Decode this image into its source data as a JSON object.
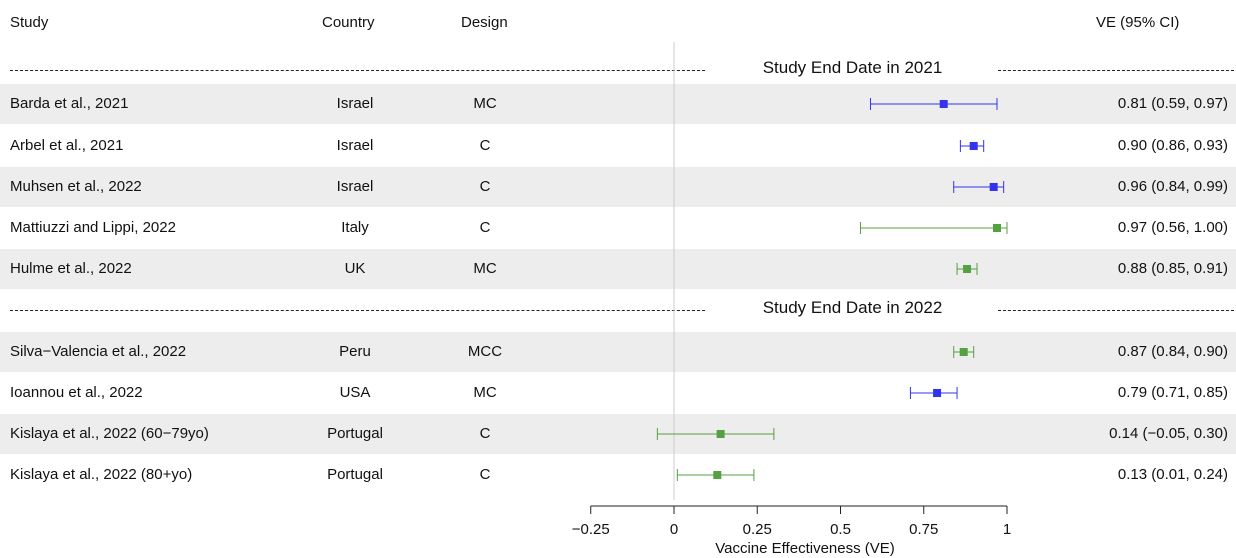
{
  "header": {
    "study": "Study",
    "country": "Country",
    "design": "Design",
    "ve": "VE (95% CI)"
  },
  "groups": [
    {
      "label": "Study End Date in 2021",
      "row_start": 0
    },
    {
      "label": "Study End Date in 2022",
      "row_start": 5
    }
  ],
  "colors": {
    "blue": "#3333ee",
    "green": "#55a040",
    "ref_line": "#cccccc",
    "row_shade": "#ededed"
  },
  "chart_data": {
    "type": "forest",
    "xlabel": "Vaccine Effectiveness (VE)",
    "xlim": [
      -0.25,
      1
    ],
    "ticks": [
      -0.25,
      0,
      0.25,
      0.5,
      0.75,
      1
    ],
    "tick_labels": [
      "−0.25",
      "0",
      "0.25",
      "0.5",
      "0.75",
      "1"
    ],
    "reference_line": 0,
    "rows": [
      {
        "study": "Barda et al., 2021",
        "country": "Israel",
        "design": "MC",
        "ve": 0.81,
        "lo": 0.59,
        "hi": 0.97,
        "ci_text": "0.81  (0.59, 0.97)",
        "color": "blue",
        "shaded": true
      },
      {
        "study": "Arbel et al., 2021",
        "country": "Israel",
        "design": "C",
        "ve": 0.9,
        "lo": 0.86,
        "hi": 0.93,
        "ci_text": "0.90  (0.86, 0.93)",
        "color": "blue",
        "shaded": false
      },
      {
        "study": "Muhsen et al., 2022",
        "country": "Israel",
        "design": "C",
        "ve": 0.96,
        "lo": 0.84,
        "hi": 0.99,
        "ci_text": "0.96  (0.84, 0.99)",
        "color": "blue",
        "shaded": true
      },
      {
        "study": "Mattiuzzi and Lippi, 2022",
        "country": "Italy",
        "design": "C",
        "ve": 0.97,
        "lo": 0.56,
        "hi": 1.0,
        "ci_text": "0.97  (0.56, 1.00)",
        "color": "green",
        "shaded": false
      },
      {
        "study": "Hulme et al., 2022",
        "country": "UK",
        "design": "MC",
        "ve": 0.88,
        "lo": 0.85,
        "hi": 0.91,
        "ci_text": "0.88  (0.85, 0.91)",
        "color": "green",
        "shaded": true
      },
      {
        "study": "Silva−Valencia et al., 2022",
        "country": "Peru",
        "design": "MCC",
        "ve": 0.87,
        "lo": 0.84,
        "hi": 0.9,
        "ci_text": "0.87  (0.84, 0.90)",
        "color": "green",
        "shaded": true
      },
      {
        "study": "Ioannou et al., 2022",
        "country": "USA",
        "design": "MC",
        "ve": 0.79,
        "lo": 0.71,
        "hi": 0.85,
        "ci_text": "0.79  (0.71, 0.85)",
        "color": "blue",
        "shaded": false
      },
      {
        "study": "Kislaya et al., 2022 (60−79yo)",
        "country": "Portugal",
        "design": "C",
        "ve": 0.14,
        "lo": -0.05,
        "hi": 0.3,
        "ci_text": "0.14  (−0.05, 0.30)",
        "color": "green",
        "shaded": true
      },
      {
        "study": "Kislaya et al., 2022 (80+yo)",
        "country": "Portugal",
        "design": "C",
        "ve": 0.13,
        "lo": 0.01,
        "hi": 0.24,
        "ci_text": "0.13  (0.01, 0.24)",
        "color": "green",
        "shaded": false
      }
    ]
  }
}
